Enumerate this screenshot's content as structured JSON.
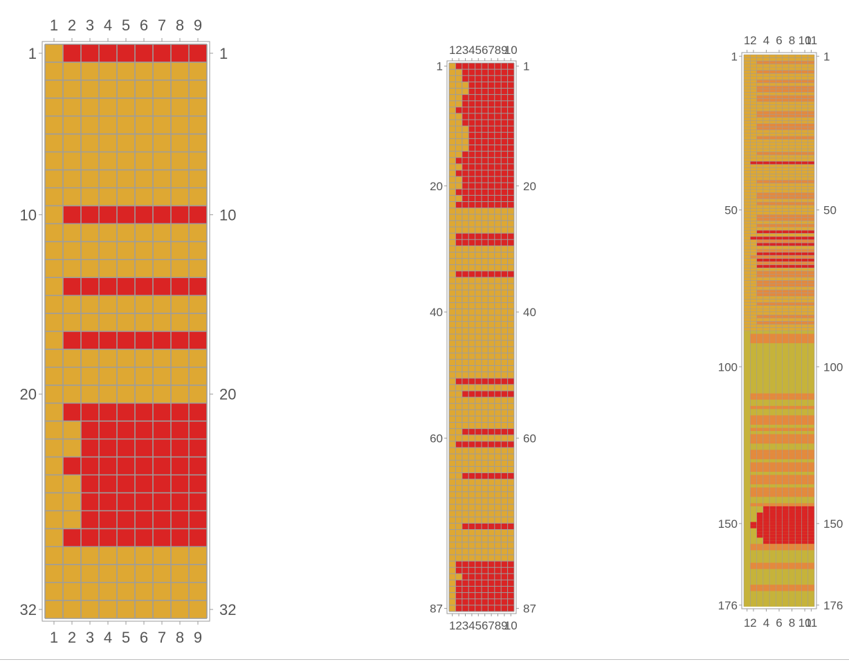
{
  "colors": {
    "background_cell": "#DEA833",
    "marked_cell": "#DA2424",
    "medium_cell": "#E4893D",
    "olive_cell": "#C6B33A",
    "grid_line": "#9D9D9D",
    "tick_text": "#555555"
  },
  "chart_data": [
    {
      "type": "heatmap",
      "title": "",
      "n_rows": 32,
      "n_cols": 9,
      "x_ticks": [
        "1",
        "2",
        "3",
        "4",
        "5",
        "6",
        "7",
        "8",
        "9"
      ],
      "y_ticks": [
        "1",
        "10",
        "20",
        "32"
      ],
      "grid": true,
      "marked_cells": "rows 1,10,14,17,21: columns 2-9; rows 22,23,25,26,27: columns 3-9; rows 24,28: columns 2-9",
      "rows": [
        {
          "row": 1,
          "from": 2,
          "to": 9
        },
        {
          "row": 10,
          "from": 2,
          "to": 9
        },
        {
          "row": 14,
          "from": 2,
          "to": 9
        },
        {
          "row": 17,
          "from": 2,
          "to": 9
        },
        {
          "row": 21,
          "from": 2,
          "to": 9
        },
        {
          "row": 22,
          "from": 3,
          "to": 9
        },
        {
          "row": 23,
          "from": 3,
          "to": 9
        },
        {
          "row": 24,
          "from": 2,
          "to": 9
        },
        {
          "row": 25,
          "from": 3,
          "to": 9
        },
        {
          "row": 26,
          "from": 3,
          "to": 9
        },
        {
          "row": 27,
          "from": 3,
          "to": 9
        },
        {
          "row": 28,
          "from": 2,
          "to": 9
        }
      ]
    },
    {
      "type": "heatmap",
      "title": "",
      "n_rows": 87,
      "n_cols": 10,
      "x_ticks": [
        "1",
        "2",
        "3",
        "4",
        "5",
        "6",
        "7",
        "8",
        "9",
        "10"
      ],
      "y_ticks": [
        "1",
        "20",
        "40",
        "60",
        "87"
      ],
      "grid": true,
      "rows": [
        {
          "row": 1,
          "from": 2,
          "to": 10
        },
        {
          "row": 2,
          "from": 3,
          "to": 10
        },
        {
          "row": 3,
          "from": 3,
          "to": 10
        },
        {
          "row": 4,
          "from": 4,
          "to": 10
        },
        {
          "row": 5,
          "from": 4,
          "to": 10
        },
        {
          "row": 6,
          "from": 3,
          "to": 10
        },
        {
          "row": 7,
          "from": 3,
          "to": 10
        },
        {
          "row": 8,
          "from": 2,
          "to": 10
        },
        {
          "row": 9,
          "from": 3,
          "to": 10
        },
        {
          "row": 10,
          "from": 3,
          "to": 10
        },
        {
          "row": 11,
          "from": 4,
          "to": 10
        },
        {
          "row": 12,
          "from": 4,
          "to": 10
        },
        {
          "row": 13,
          "from": 4,
          "to": 10
        },
        {
          "row": 14,
          "from": 4,
          "to": 10
        },
        {
          "row": 15,
          "from": 3,
          "to": 10
        },
        {
          "row": 16,
          "from": 2,
          "to": 10
        },
        {
          "row": 17,
          "from": 3,
          "to": 10
        },
        {
          "row": 18,
          "from": 2,
          "to": 10
        },
        {
          "row": 19,
          "from": 3,
          "to": 10
        },
        {
          "row": 20,
          "from": 3,
          "to": 10
        },
        {
          "row": 21,
          "from": 2,
          "to": 10
        },
        {
          "row": 22,
          "from": 3,
          "to": 10
        },
        {
          "row": 23,
          "from": 2,
          "to": 10
        },
        {
          "row": 28,
          "from": 2,
          "to": 10
        },
        {
          "row": 29,
          "from": 2,
          "to": 10
        },
        {
          "row": 34,
          "from": 2,
          "to": 10
        },
        {
          "row": 51,
          "from": 2,
          "to": 10
        },
        {
          "row": 53,
          "from": 3,
          "to": 10
        },
        {
          "row": 59,
          "from": 3,
          "to": 10
        },
        {
          "row": 61,
          "from": 2,
          "to": 10
        },
        {
          "row": 66,
          "from": 3,
          "to": 10
        },
        {
          "row": 74,
          "from": 3,
          "to": 10
        },
        {
          "row": 80,
          "from": 2,
          "to": 10
        },
        {
          "row": 81,
          "from": 2,
          "to": 10
        },
        {
          "row": 82,
          "from": 3,
          "to": 10
        },
        {
          "row": 83,
          "from": 2,
          "to": 10
        },
        {
          "row": 84,
          "from": 2,
          "to": 10
        },
        {
          "row": 85,
          "from": 2,
          "to": 10
        },
        {
          "row": 86,
          "from": 2,
          "to": 10
        },
        {
          "row": 87,
          "from": 2,
          "to": 10
        }
      ]
    },
    {
      "type": "heatmap",
      "title": "",
      "n_rows": 176,
      "n_cols": 11,
      "x_ticks": [
        "1",
        "2",
        "4",
        "6",
        "8",
        "10",
        "11"
      ],
      "y_ticks": [
        "1",
        "50",
        "100",
        "150",
        "176"
      ],
      "grid": true,
      "bands": [
        {
          "from_row": 1,
          "to_row": 88,
          "color": "grid_striped",
          "description": "fine striped rows with scattered salmon and red rows"
        },
        {
          "from_row": 89,
          "to_row": 176,
          "color": "olive_cell",
          "description": "olive background with orange horizontal rows and a red block near rows 143-158 columns 4-11"
        }
      ],
      "rows": [
        {
          "row": 3,
          "from": 3,
          "to": 11,
          "level": "medium"
        },
        {
          "row": 6,
          "from": 3,
          "to": 11,
          "level": "medium"
        },
        {
          "row": 9,
          "from": 3,
          "to": 11,
          "level": "medium"
        },
        {
          "row": 11,
          "from": 3,
          "to": 11,
          "level": "medium"
        },
        {
          "row": 12,
          "from": 3,
          "to": 11,
          "level": "medium"
        },
        {
          "row": 14,
          "from": 3,
          "to": 11,
          "level": "medium"
        },
        {
          "row": 15,
          "from": 3,
          "to": 11,
          "level": "medium"
        },
        {
          "row": 19,
          "from": 3,
          "to": 11,
          "level": "medium"
        },
        {
          "row": 20,
          "from": 3,
          "to": 11,
          "level": "medium"
        },
        {
          "row": 23,
          "from": 3,
          "to": 11,
          "level": "medium"
        },
        {
          "row": 24,
          "from": 3,
          "to": 11,
          "level": "medium"
        },
        {
          "row": 27,
          "from": 3,
          "to": 11,
          "level": "medium"
        },
        {
          "row": 32,
          "from": 3,
          "to": 11,
          "level": "medium"
        },
        {
          "row": 35,
          "from": 2,
          "to": 11,
          "level": "high"
        },
        {
          "row": 41,
          "from": 3,
          "to": 11,
          "level": "medium"
        },
        {
          "row": 45,
          "from": 3,
          "to": 11,
          "level": "medium"
        },
        {
          "row": 46,
          "from": 3,
          "to": 11,
          "level": "medium"
        },
        {
          "row": 48,
          "from": 3,
          "to": 11,
          "level": "medium"
        },
        {
          "row": 52,
          "from": 3,
          "to": 11,
          "level": "medium"
        },
        {
          "row": 53,
          "from": 3,
          "to": 11,
          "level": "medium"
        },
        {
          "row": 55,
          "from": 3,
          "to": 11,
          "level": "medium"
        },
        {
          "row": 57,
          "from": 3,
          "to": 11,
          "level": "high"
        },
        {
          "row": 59,
          "from": 2,
          "to": 11,
          "level": "high"
        },
        {
          "row": 60,
          "from": 3,
          "to": 11,
          "level": "medium"
        },
        {
          "row": 61,
          "from": 3,
          "to": 11,
          "level": "high"
        },
        {
          "row": 63,
          "from": 3,
          "to": 11,
          "level": "medium"
        },
        {
          "row": 64,
          "from": 3,
          "to": 11,
          "level": "high"
        },
        {
          "row": 65,
          "from": 2,
          "to": 11,
          "level": "medium"
        },
        {
          "row": 66,
          "from": 3,
          "to": 11,
          "level": "high"
        },
        {
          "row": 67,
          "from": 3,
          "to": 11,
          "level": "medium"
        },
        {
          "row": 68,
          "from": 3,
          "to": 11,
          "level": "high"
        },
        {
          "row": 70,
          "from": 3,
          "to": 11,
          "level": "medium"
        },
        {
          "row": 71,
          "from": 3,
          "to": 11,
          "level": "medium"
        },
        {
          "row": 73,
          "from": 3,
          "to": 11,
          "level": "medium"
        },
        {
          "row": 74,
          "from": 3,
          "to": 11,
          "level": "medium"
        },
        {
          "row": 76,
          "from": 3,
          "to": 11,
          "level": "medium"
        },
        {
          "row": 77,
          "from": 3,
          "to": 11,
          "level": "medium"
        },
        {
          "row": 80,
          "from": 3,
          "to": 11,
          "level": "medium"
        },
        {
          "row": 84,
          "from": 3,
          "to": 11,
          "level": "medium"
        },
        {
          "row": 86,
          "from": 3,
          "to": 11,
          "level": "medium"
        },
        {
          "row": 90,
          "from": 2,
          "to": 11,
          "level": "medium"
        },
        {
          "row": 91,
          "from": 2,
          "to": 11,
          "level": "medium"
        },
        {
          "row": 92,
          "from": 2,
          "to": 11,
          "level": "medium"
        },
        {
          "row": 109,
          "from": 2,
          "to": 11,
          "level": "medium"
        },
        {
          "row": 110,
          "from": 2,
          "to": 11,
          "level": "medium"
        },
        {
          "row": 113,
          "from": 2,
          "to": 11,
          "level": "medium"
        },
        {
          "row": 116,
          "from": 2,
          "to": 11,
          "level": "medium"
        },
        {
          "row": 117,
          "from": 2,
          "to": 11,
          "level": "medium"
        },
        {
          "row": 118,
          "from": 2,
          "to": 11,
          "level": "medium"
        },
        {
          "row": 120,
          "from": 2,
          "to": 11,
          "level": "medium"
        },
        {
          "row": 122,
          "from": 2,
          "to": 11,
          "level": "medium"
        },
        {
          "row": 123,
          "from": 2,
          "to": 11,
          "level": "medium"
        },
        {
          "row": 124,
          "from": 2,
          "to": 11,
          "level": "medium"
        },
        {
          "row": 127,
          "from": 2,
          "to": 11,
          "level": "medium"
        },
        {
          "row": 128,
          "from": 2,
          "to": 11,
          "level": "medium"
        },
        {
          "row": 129,
          "from": 2,
          "to": 11,
          "level": "medium"
        },
        {
          "row": 131,
          "from": 2,
          "to": 11,
          "level": "medium"
        },
        {
          "row": 132,
          "from": 2,
          "to": 11,
          "level": "medium"
        },
        {
          "row": 133,
          "from": 2,
          "to": 11,
          "level": "medium"
        },
        {
          "row": 135,
          "from": 2,
          "to": 11,
          "level": "medium"
        },
        {
          "row": 136,
          "from": 2,
          "to": 11,
          "level": "medium"
        },
        {
          "row": 137,
          "from": 2,
          "to": 11,
          "level": "medium"
        },
        {
          "row": 139,
          "from": 2,
          "to": 11,
          "level": "medium"
        },
        {
          "row": 140,
          "from": 2,
          "to": 11,
          "level": "medium"
        },
        {
          "row": 141,
          "from": 2,
          "to": 11,
          "level": "medium"
        },
        {
          "row": 144,
          "from": 2,
          "to": 11,
          "level": "medium"
        },
        {
          "row": 145,
          "from": 4,
          "to": 11,
          "level": "high"
        },
        {
          "row": 146,
          "from": 4,
          "to": 11,
          "level": "high"
        },
        {
          "row": 147,
          "from": 3,
          "to": 11,
          "level": "high"
        },
        {
          "row": 148,
          "from": 3,
          "to": 11,
          "level": "high"
        },
        {
          "row": 149,
          "from": 3,
          "to": 11,
          "level": "high"
        },
        {
          "row": 150,
          "from": 2,
          "to": 11,
          "level": "high"
        },
        {
          "row": 151,
          "from": 2,
          "to": 11,
          "level": "high"
        },
        {
          "row": 152,
          "from": 3,
          "to": 11,
          "level": "high"
        },
        {
          "row": 153,
          "from": 3,
          "to": 11,
          "level": "high"
        },
        {
          "row": 154,
          "from": 3,
          "to": 11,
          "level": "high"
        },
        {
          "row": 155,
          "from": 4,
          "to": 11,
          "level": "high"
        },
        {
          "row": 156,
          "from": 4,
          "to": 11,
          "level": "high"
        },
        {
          "row": 157,
          "from": 2,
          "to": 11,
          "level": "medium"
        },
        {
          "row": 158,
          "from": 2,
          "to": 11,
          "level": "medium"
        },
        {
          "row": 163,
          "from": 2,
          "to": 11,
          "level": "medium"
        },
        {
          "row": 164,
          "from": 2,
          "to": 11,
          "level": "medium"
        },
        {
          "row": 170,
          "from": 2,
          "to": 11,
          "level": "medium"
        },
        {
          "row": 171,
          "from": 2,
          "to": 11,
          "level": "medium"
        }
      ]
    }
  ]
}
